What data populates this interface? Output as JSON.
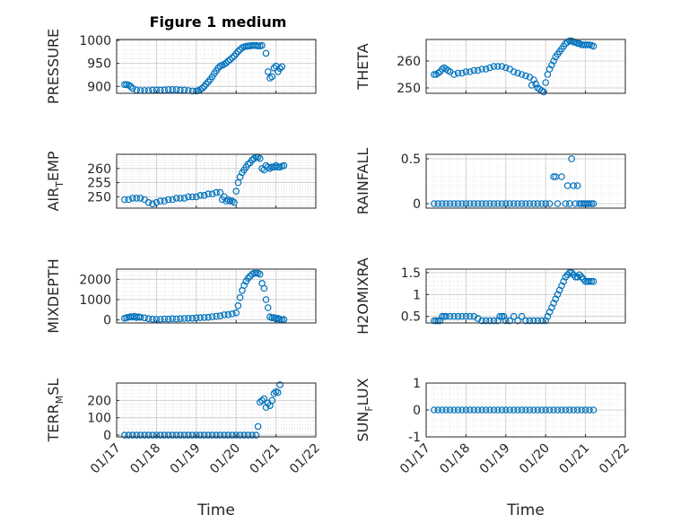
{
  "figure": {
    "title": "Figure 1 medium",
    "marker_color": "#0072BD",
    "grid": true,
    "minor_grid": true
  },
  "chart_data": [
    {
      "type": "scatter",
      "ylabel": "PRESSURE",
      "xlabel": "",
      "ylim": [
        885,
        1002
      ],
      "yticks": [
        900,
        950,
        1000
      ],
      "xticks": [
        "01/17",
        "01/18",
        "01/19",
        "01/20",
        "01/21",
        "01/22"
      ],
      "xlim": [
        17,
        22
      ],
      "x": [
        17.2,
        17.25,
        17.3,
        17.35,
        17.4,
        17.5,
        17.6,
        17.7,
        17.8,
        17.9,
        18.0,
        18.1,
        18.2,
        18.3,
        18.4,
        18.5,
        18.6,
        18.7,
        18.8,
        18.9,
        19.0,
        19.05,
        19.1,
        19.15,
        19.2,
        19.25,
        19.3,
        19.35,
        19.4,
        19.45,
        19.5,
        19.55,
        19.6,
        19.65,
        19.7,
        19.75,
        19.8,
        19.85,
        19.9,
        19.95,
        20.0,
        20.05,
        20.1,
        20.15,
        20.2,
        20.25,
        20.3,
        20.35,
        20.4,
        20.45,
        20.5,
        20.55,
        20.6,
        20.65,
        20.75,
        20.8,
        20.85,
        20.9,
        20.95,
        21.0,
        21.05,
        21.1,
        21.15
      ],
      "y": [
        904,
        904,
        903,
        900,
        896,
        892,
        891,
        891,
        891,
        892,
        892,
        892,
        892,
        893,
        893,
        893,
        892,
        892,
        891,
        890,
        890,
        891,
        893,
        896,
        900,
        905,
        910,
        915,
        921,
        928,
        934,
        940,
        944,
        946,
        948,
        951,
        955,
        958,
        962,
        966,
        971,
        976,
        980,
        984,
        986,
        987,
        988,
        988,
        989,
        989,
        989,
        988,
        988,
        989,
        972,
        932,
        918,
        921,
        940,
        944,
        932,
        939,
        943
      ]
    },
    {
      "type": "scatter",
      "ylabel": "THETA",
      "xlabel": "",
      "ylim": [
        248,
        268
      ],
      "yticks": [
        250,
        260
      ],
      "xticks": [
        "01/17",
        "01/18",
        "01/19",
        "01/20",
        "01/21",
        "01/22"
      ],
      "xlim": [
        17,
        22
      ],
      "x": [
        17.2,
        17.25,
        17.3,
        17.35,
        17.4,
        17.45,
        17.5,
        17.55,
        17.6,
        17.7,
        17.8,
        17.9,
        18.0,
        18.1,
        18.2,
        18.3,
        18.4,
        18.5,
        18.6,
        18.7,
        18.8,
        18.9,
        19.0,
        19.1,
        19.2,
        19.3,
        19.4,
        19.5,
        19.6,
        19.65,
        19.7,
        19.75,
        19.8,
        19.85,
        19.9,
        19.95,
        20.0,
        20.05,
        20.1,
        20.15,
        20.2,
        20.25,
        20.3,
        20.35,
        20.4,
        20.45,
        20.5,
        20.55,
        20.6,
        20.65,
        20.7,
        20.75,
        20.8,
        20.85,
        20.9,
        20.95,
        21.0,
        21.05,
        21.1,
        21.15,
        21.2
      ],
      "y": [
        255,
        255,
        255.5,
        256,
        257,
        257.5,
        257,
        256.5,
        256,
        255,
        255.5,
        255.5,
        256,
        256,
        256.5,
        256.5,
        257,
        257,
        257.5,
        258,
        258,
        258,
        257.5,
        257,
        256,
        255.5,
        255,
        254.5,
        254,
        251,
        253,
        251.5,
        250,
        249.5,
        249,
        248.5,
        252,
        255,
        257,
        258.5,
        260,
        261.5,
        262.5,
        263.5,
        264.5,
        265.5,
        266.5,
        267,
        267.5,
        267.5,
        267,
        267,
        266.5,
        266.5,
        266,
        266,
        266,
        266,
        266,
        265.8,
        265.5
      ]
    },
    {
      "type": "scatter",
      "ylabel": "AIR_TEMP",
      "xlabel": "",
      "ylim": [
        246,
        265
      ],
      "yticks": [
        250,
        255,
        260
      ],
      "xticks": [
        "01/17",
        "01/18",
        "01/19",
        "01/20",
        "01/21",
        "01/22"
      ],
      "xlim": [
        17,
        22
      ],
      "x": [
        17.2,
        17.3,
        17.4,
        17.5,
        17.6,
        17.7,
        17.8,
        17.9,
        18.0,
        18.1,
        18.2,
        18.3,
        18.4,
        18.5,
        18.6,
        18.7,
        18.8,
        18.9,
        19.0,
        19.1,
        19.2,
        19.3,
        19.4,
        19.5,
        19.6,
        19.65,
        19.7,
        19.75,
        19.8,
        19.85,
        19.9,
        19.95,
        20.0,
        20.05,
        20.1,
        20.15,
        20.2,
        20.25,
        20.3,
        20.35,
        20.4,
        20.45,
        20.5,
        20.55,
        20.6,
        20.65,
        20.7,
        20.75,
        20.8,
        20.85,
        20.9,
        20.95,
        21.0,
        21.05,
        21.1,
        21.15,
        21.2
      ],
      "y": [
        249,
        249,
        249.5,
        249.5,
        249.5,
        249,
        248,
        247.5,
        248,
        248.5,
        248.5,
        249,
        249,
        249.5,
        249.5,
        249.5,
        250,
        250,
        250,
        250.5,
        250.5,
        251,
        251,
        251.5,
        251.5,
        249,
        250,
        248.5,
        249,
        248.5,
        248.5,
        248,
        252,
        255,
        257,
        258.5,
        259.5,
        260.5,
        261.5,
        262,
        263,
        263.5,
        264,
        264,
        263.5,
        260,
        259.5,
        261,
        260.5,
        260,
        260.5,
        260.5,
        261,
        260.5,
        260.5,
        260.8,
        261
      ]
    },
    {
      "type": "scatter",
      "ylabel": "RAINFALL",
      "xlabel": "",
      "ylim": [
        -0.05,
        0.55
      ],
      "yticks": [
        0,
        0.5
      ],
      "xticks": [
        "01/17",
        "01/18",
        "01/19",
        "01/20",
        "01/21",
        "01/22"
      ],
      "xlim": [
        17,
        22
      ],
      "x": [
        17.2,
        17.3,
        17.4,
        17.5,
        17.6,
        17.7,
        17.8,
        17.9,
        18.0,
        18.1,
        18.2,
        18.3,
        18.4,
        18.5,
        18.6,
        18.7,
        18.8,
        18.9,
        19.0,
        19.1,
        19.2,
        19.3,
        19.4,
        19.5,
        19.6,
        19.7,
        19.8,
        19.9,
        20.0,
        20.1,
        20.2,
        20.25,
        20.3,
        20.4,
        20.5,
        20.55,
        20.6,
        20.65,
        20.7,
        20.75,
        20.8,
        20.85,
        20.9,
        20.95,
        21.0,
        21.05,
        21.1,
        21.15,
        21.2
      ],
      "y": [
        0,
        0,
        0,
        0,
        0,
        0,
        0,
        0,
        0,
        0,
        0,
        0,
        0,
        0,
        0,
        0,
        0,
        0,
        0,
        0,
        0,
        0,
        0,
        0,
        0,
        0,
        0,
        0,
        0,
        0,
        0.3,
        0.3,
        0,
        0.3,
        0,
        0.2,
        0,
        0.5,
        0.2,
        0,
        0.2,
        0,
        0,
        0,
        0,
        0,
        0,
        0,
        0
      ]
    },
    {
      "type": "scatter",
      "ylabel": "MIXDEPTH",
      "xlabel": "",
      "ylim": [
        -150,
        2500
      ],
      "yticks": [
        0,
        1000,
        2000
      ],
      "xticks": [
        "01/17",
        "01/18",
        "01/19",
        "01/20",
        "01/21",
        "01/22"
      ],
      "xlim": [
        17,
        22
      ],
      "x": [
        17.2,
        17.25,
        17.3,
        17.35,
        17.4,
        17.45,
        17.5,
        17.55,
        17.6,
        17.7,
        17.8,
        17.9,
        18.0,
        18.1,
        18.2,
        18.3,
        18.4,
        18.5,
        18.6,
        18.7,
        18.8,
        18.9,
        19.0,
        19.1,
        19.2,
        19.3,
        19.4,
        19.5,
        19.6,
        19.7,
        19.8,
        19.9,
        20.0,
        20.05,
        20.1,
        20.15,
        20.2,
        20.25,
        20.3,
        20.35,
        20.4,
        20.45,
        20.5,
        20.55,
        20.6,
        20.65,
        20.7,
        20.75,
        20.8,
        20.85,
        20.9,
        20.95,
        21.0,
        21.05,
        21.1,
        21.15,
        21.2
      ],
      "y": [
        80,
        110,
        130,
        160,
        140,
        180,
        120,
        150,
        130,
        100,
        60,
        40,
        30,
        30,
        50,
        40,
        60,
        50,
        60,
        70,
        80,
        80,
        100,
        110,
        120,
        130,
        160,
        180,
        200,
        250,
        260,
        300,
        350,
        700,
        1100,
        1450,
        1700,
        1900,
        2050,
        2150,
        2250,
        2300,
        2300,
        2300,
        2250,
        1800,
        1550,
        1000,
        600,
        150,
        100,
        120,
        50,
        80,
        30,
        10,
        20
      ]
    },
    {
      "type": "scatter",
      "ylabel": "H2OMIXRA",
      "xlabel": "",
      "ylim": [
        0.35,
        1.58
      ],
      "yticks": [
        0.5,
        1,
        1.5
      ],
      "xticks": [
        "01/17",
        "01/18",
        "01/19",
        "01/20",
        "01/21",
        "01/22"
      ],
      "xlim": [
        17,
        22
      ],
      "x": [
        17.2,
        17.25,
        17.3,
        17.35,
        17.4,
        17.45,
        17.5,
        17.6,
        17.7,
        17.8,
        17.9,
        18.0,
        18.1,
        18.2,
        18.3,
        18.4,
        18.5,
        18.6,
        18.7,
        18.8,
        18.85,
        18.9,
        18.95,
        19.0,
        19.1,
        19.2,
        19.3,
        19.4,
        19.5,
        19.6,
        19.7,
        19.8,
        19.9,
        20.0,
        20.05,
        20.1,
        20.15,
        20.2,
        20.25,
        20.3,
        20.35,
        20.4,
        20.45,
        20.5,
        20.55,
        20.6,
        20.65,
        20.7,
        20.75,
        20.8,
        20.85,
        20.9,
        20.95,
        21.0,
        21.05,
        21.1,
        21.15,
        21.2
      ],
      "y": [
        0.4,
        0.4,
        0.4,
        0.4,
        0.5,
        0.5,
        0.5,
        0.5,
        0.5,
        0.5,
        0.5,
        0.5,
        0.5,
        0.5,
        0.45,
        0.4,
        0.4,
        0.4,
        0.4,
        0.4,
        0.5,
        0.5,
        0.5,
        0.4,
        0.4,
        0.5,
        0.4,
        0.5,
        0.4,
        0.4,
        0.4,
        0.4,
        0.4,
        0.4,
        0.5,
        0.6,
        0.7,
        0.8,
        0.9,
        1.0,
        1.1,
        1.2,
        1.3,
        1.4,
        1.45,
        1.5,
        1.5,
        1.45,
        1.4,
        1.4,
        1.45,
        1.4,
        1.35,
        1.3,
        1.3,
        1.3,
        1.3,
        1.3
      ]
    },
    {
      "type": "scatter",
      "ylabel": "TERR_MSL",
      "xlabel": "Time",
      "ylim": [
        -10,
        300
      ],
      "yticks": [
        0,
        100,
        200
      ],
      "xticks": [
        "01/17",
        "01/18",
        "01/19",
        "01/20",
        "01/21",
        "01/22"
      ],
      "xlim": [
        17,
        22
      ],
      "x": [
        17.2,
        17.3,
        17.4,
        17.5,
        17.6,
        17.7,
        17.8,
        17.9,
        18.0,
        18.1,
        18.2,
        18.3,
        18.4,
        18.5,
        18.6,
        18.7,
        18.8,
        18.9,
        19.0,
        19.1,
        19.2,
        19.3,
        19.4,
        19.5,
        19.6,
        19.7,
        19.8,
        19.9,
        20.0,
        20.1,
        20.2,
        20.3,
        20.4,
        20.5,
        20.55,
        20.6,
        20.65,
        20.7,
        20.75,
        20.8,
        20.85,
        20.9,
        20.95,
        21.0,
        21.05,
        21.1
      ],
      "y": [
        0,
        0,
        0,
        0,
        0,
        0,
        0,
        0,
        0,
        0,
        0,
        0,
        0,
        0,
        0,
        0,
        0,
        0,
        0,
        0,
        0,
        0,
        0,
        0,
        0,
        0,
        0,
        0,
        0,
        0,
        0,
        0,
        0,
        0,
        50,
        190,
        200,
        210,
        160,
        185,
        170,
        200,
        240,
        250,
        245,
        290
      ]
    },
    {
      "type": "scatter",
      "ylabel": "SUN_FLUX",
      "xlabel": "Time",
      "ylim": [
        -1,
        1
      ],
      "yticks": [
        -1,
        0,
        1
      ],
      "xticks": [
        "01/17",
        "01/18",
        "01/19",
        "01/20",
        "01/21",
        "01/22"
      ],
      "xlim": [
        17,
        22
      ],
      "x": [
        17.2,
        17.3,
        17.4,
        17.5,
        17.6,
        17.7,
        17.8,
        17.9,
        18.0,
        18.1,
        18.2,
        18.3,
        18.4,
        18.5,
        18.6,
        18.7,
        18.8,
        18.9,
        19.0,
        19.1,
        19.2,
        19.3,
        19.4,
        19.5,
        19.6,
        19.7,
        19.8,
        19.9,
        20.0,
        20.1,
        20.2,
        20.3,
        20.4,
        20.5,
        20.6,
        20.7,
        20.8,
        20.9,
        21.0,
        21.1,
        21.2
      ],
      "y": [
        0,
        0,
        0,
        0,
        0,
        0,
        0,
        0,
        0,
        0,
        0,
        0,
        0,
        0,
        0,
        0,
        0,
        0,
        0,
        0,
        0,
        0,
        0,
        0,
        0,
        0,
        0,
        0,
        0,
        0,
        0,
        0,
        0,
        0,
        0,
        0,
        0,
        0,
        0,
        0,
        0
      ]
    }
  ]
}
